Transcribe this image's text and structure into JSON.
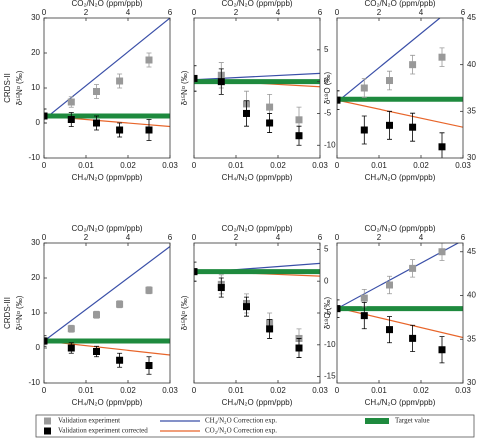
{
  "chart_data": [
    {
      "type": "scatter",
      "row_label": "CRDS-II",
      "xlabel": "CH₄/N₂O (ppm/ppb)",
      "x2label": "CO₂/N₂O (ppm/ppb)",
      "ylabel": "δ¹⁵Nᵅ (‰)",
      "y_axis_side": "left",
      "xlim": [
        0,
        0.03
      ],
      "xticks": [
        0,
        0.01,
        0.02,
        0.03
      ],
      "x2lim": [
        0,
        6
      ],
      "x2ticks": [
        0,
        2,
        4,
        6
      ],
      "ylim": [
        -10,
        30
      ],
      "yticks": [
        -10,
        0,
        10,
        20,
        30
      ],
      "series": [
        {
          "name": "Validation experiment",
          "type": "points",
          "color": "#999999",
          "x": [
            0,
            0.0065,
            0.0125,
            0.018,
            0.025
          ],
          "values": [
            2,
            6,
            9,
            12,
            18
          ],
          "errors": [
            2,
            1.5,
            2,
            2,
            2
          ]
        },
        {
          "name": "Validation experiment corrected",
          "type": "points",
          "color": "#000000",
          "x": [
            0,
            0.0065,
            0.0125,
            0.018,
            0.025
          ],
          "values": [
            2,
            1,
            0,
            -2,
            -2
          ],
          "errors": [
            2,
            2,
            2,
            2,
            3
          ]
        },
        {
          "name": "CH₄/N₂O Correction exp.",
          "type": "line",
          "color": "#3a4fa8",
          "x": [
            0,
            0.03
          ],
          "values": [
            1,
            30
          ]
        },
        {
          "name": "CO₂/N₂O Correction exp.",
          "type": "line",
          "color": "#e8652a",
          "x": [
            0,
            0.03
          ],
          "values": [
            2,
            -1
          ]
        },
        {
          "name": "Target value",
          "type": "band",
          "color": "#1e8a3e",
          "x": [
            0,
            0.03
          ],
          "values": [
            2,
            2
          ]
        }
      ]
    },
    {
      "type": "scatter",
      "xlabel": "CH₄/N₂O (ppm/ppb)",
      "x2label": "CO₂/N₂O (ppm/ppb)",
      "ylabel": "δ¹⁵Nᵅ (‰)",
      "y_axis_side": "right",
      "xlim": [
        0,
        0.03
      ],
      "xticks": [
        0,
        0.01,
        0.02,
        0.03
      ],
      "x2lim": [
        0,
        6
      ],
      "x2ticks": [
        0,
        2,
        4,
        6
      ],
      "ylim": [
        -12,
        10
      ],
      "yticks": [
        -10,
        -5,
        0,
        5
      ],
      "series": [
        {
          "type": "points",
          "color": "#999999",
          "x": [
            0,
            0.0065,
            0.0125,
            0.018,
            0.025
          ],
          "values": [
            0.5,
            1,
            -3.5,
            -4,
            -6
          ],
          "errors": [
            2,
            2,
            2,
            2,
            2
          ]
        },
        {
          "type": "points",
          "color": "#000000",
          "x": [
            0,
            0.0065,
            0.0125,
            0.018,
            0.025
          ],
          "values": [
            0.5,
            0,
            -5,
            -6.5,
            -8.5
          ],
          "errors": [
            2,
            2,
            2,
            1.5,
            1.5
          ]
        },
        {
          "type": "line",
          "color": "#3a4fa8",
          "x": [
            0,
            0.03
          ],
          "values": [
            0.3,
            1.3
          ]
        },
        {
          "type": "line",
          "color": "#e8652a",
          "x": [
            0,
            0.03
          ],
          "values": [
            0.3,
            -0.8
          ]
        },
        {
          "type": "band",
          "color": "#1e8a3e",
          "x": [
            0,
            0.03
          ],
          "values": [
            0,
            0
          ]
        }
      ]
    },
    {
      "type": "scatter",
      "xlabel": "CH₄/N₂O (ppm/ppb)",
      "x2label": "CO₂/N₂O (ppm/ppb)",
      "ylabel": "δ¹⁸O (‰)",
      "y_axis_side": "right",
      "xlim": [
        0,
        0.03
      ],
      "xticks": [
        0,
        0.01,
        0.02,
        0.03
      ],
      "x2lim": [
        0,
        6
      ],
      "x2ticks": [
        0,
        2,
        4,
        6
      ],
      "ylim": [
        30,
        45
      ],
      "yticks": [
        30,
        35,
        40,
        45
      ],
      "series": [
        {
          "type": "points",
          "color": "#999999",
          "x": [
            0,
            0.0065,
            0.0125,
            0.018,
            0.025
          ],
          "values": [
            36.2,
            37.5,
            38.3,
            40,
            40.8
          ],
          "errors": [
            1,
            1,
            1,
            1,
            1
          ]
        },
        {
          "type": "points",
          "color": "#000000",
          "x": [
            0,
            0.0065,
            0.0125,
            0.018,
            0.025
          ],
          "values": [
            36.2,
            33,
            33.5,
            33.3,
            31.2
          ],
          "errors": [
            1,
            1.5,
            1.5,
            1.5,
            1.5
          ]
        },
        {
          "type": "line",
          "color": "#3a4fa8",
          "x": [
            0,
            0.0245
          ],
          "values": [
            36,
            45
          ]
        },
        {
          "type": "line",
          "color": "#e8652a",
          "x": [
            0,
            0.03
          ],
          "values": [
            36.2,
            33.3
          ]
        },
        {
          "type": "band",
          "color": "#1e8a3e",
          "x": [
            0,
            0.03
          ],
          "values": [
            36.3,
            36.3
          ]
        }
      ]
    },
    {
      "type": "scatter",
      "row_label": "CRDS-III",
      "xlabel": "CH₄/N₂O (ppm/ppb)",
      "x2label": "CO₂/N₂O (ppm/ppb)",
      "ylabel": "δ¹⁵Nᵅ (‰)",
      "y_axis_side": "left",
      "xlim": [
        0,
        0.03
      ],
      "xticks": [
        0,
        0.01,
        0.02,
        0.03
      ],
      "x2lim": [
        0,
        6
      ],
      "x2ticks": [
        0,
        2,
        4,
        6
      ],
      "ylim": [
        -10,
        30
      ],
      "yticks": [
        -10,
        0,
        10,
        20,
        30
      ],
      "series": [
        {
          "type": "points",
          "color": "#999999",
          "x": [
            0,
            0.0065,
            0.0125,
            0.018,
            0.025
          ],
          "values": [
            2,
            5.5,
            9.5,
            12.5,
            16.5
          ],
          "errors": [
            1,
            1,
            1,
            1,
            1
          ]
        },
        {
          "type": "points",
          "color": "#000000",
          "x": [
            0,
            0.0065,
            0.0125,
            0.018,
            0.025
          ],
          "values": [
            2,
            0,
            -1,
            -3.5,
            -5
          ],
          "errors": [
            1.5,
            1.5,
            1.5,
            2,
            2.5
          ]
        },
        {
          "type": "line",
          "color": "#3a4fa8",
          "x": [
            0,
            0.03
          ],
          "values": [
            2,
            29
          ]
        },
        {
          "type": "line",
          "color": "#e8652a",
          "x": [
            0,
            0.03
          ],
          "values": [
            2,
            -2
          ]
        },
        {
          "type": "band",
          "color": "#1e8a3e",
          "x": [
            0,
            0.03
          ],
          "values": [
            2,
            2
          ]
        }
      ]
    },
    {
      "type": "scatter",
      "xlabel": "CH₄/N₂O (ppm/ppb)",
      "x2label": "CO₂/N₂O (ppm/ppb)",
      "ylabel": "δ¹⁵Nᵅ (‰)",
      "y_axis_side": "right",
      "xlim": [
        0,
        0.03
      ],
      "xticks": [
        0,
        0.01,
        0.02,
        0.03
      ],
      "x2lim": [
        0,
        6
      ],
      "x2ticks": [
        0,
        2,
        4,
        6
      ],
      "ylim": [
        -16,
        6
      ],
      "yticks": [
        -15,
        -10,
        -5,
        0,
        5
      ],
      "series": [
        {
          "type": "points",
          "color": "#999999",
          "x": [
            0,
            0.0065,
            0.0125,
            0.018,
            0.025
          ],
          "values": [
            1.5,
            -0.5,
            -3.5,
            -6.5,
            -9
          ],
          "errors": [
            1.5,
            1.5,
            1.5,
            1.5,
            1.5
          ]
        },
        {
          "type": "points",
          "color": "#000000",
          "x": [
            0,
            0.0065,
            0.0125,
            0.018,
            0.025
          ],
          "values": [
            1.5,
            -1,
            -4,
            -7.5,
            -10.5
          ],
          "errors": [
            1.5,
            1.5,
            1.5,
            1.5,
            1.5
          ]
        },
        {
          "type": "line",
          "color": "#3a4fa8",
          "x": [
            0,
            0.03
          ],
          "values": [
            1.3,
            2.8
          ]
        },
        {
          "type": "line",
          "color": "#e8652a",
          "x": [
            0,
            0.03
          ],
          "values": [
            1.6,
            0.8
          ]
        },
        {
          "type": "band",
          "color": "#1e8a3e",
          "x": [
            0,
            0.03
          ],
          "values": [
            1.5,
            1.5
          ]
        }
      ]
    },
    {
      "type": "scatter",
      "xlabel": "CH₄/N₂O (ppm/ppb)",
      "x2label": "CO₂/N₂O (ppm/ppb)",
      "ylabel": "δ¹⁸O (‰)",
      "y_axis_side": "right",
      "xlim": [
        0,
        0.03
      ],
      "xticks": [
        0,
        0.01,
        0.02,
        0.03
      ],
      "x2lim": [
        0,
        6
      ],
      "x2ticks": [
        0,
        2,
        4,
        6
      ],
      "ylim": [
        30,
        46
      ],
      "yticks": [
        30,
        35,
        40,
        45
      ],
      "series": [
        {
          "type": "points",
          "color": "#999999",
          "x": [
            0,
            0.0065,
            0.0125,
            0.018,
            0.025
          ],
          "values": [
            38.5,
            39.7,
            41.2,
            43.1,
            45
          ],
          "errors": [
            1,
            1,
            1,
            1,
            1
          ]
        },
        {
          "type": "points",
          "color": "#000000",
          "x": [
            0,
            0.0065,
            0.0125,
            0.018,
            0.025
          ],
          "values": [
            38.5,
            37.7,
            36.1,
            35.1,
            33.8
          ],
          "errors": [
            1,
            1.5,
            1.5,
            1.5,
            1.5
          ]
        },
        {
          "type": "line",
          "color": "#3a4fa8",
          "x": [
            0,
            0.03
          ],
          "values": [
            38.5,
            46.3
          ]
        },
        {
          "type": "line",
          "color": "#e8652a",
          "x": [
            0,
            0.03
          ],
          "values": [
            38.6,
            35.2
          ]
        },
        {
          "type": "band",
          "color": "#1e8a3e",
          "x": [
            0,
            0.03
          ],
          "values": [
            38.5,
            38.5
          ]
        }
      ]
    }
  ]
}
